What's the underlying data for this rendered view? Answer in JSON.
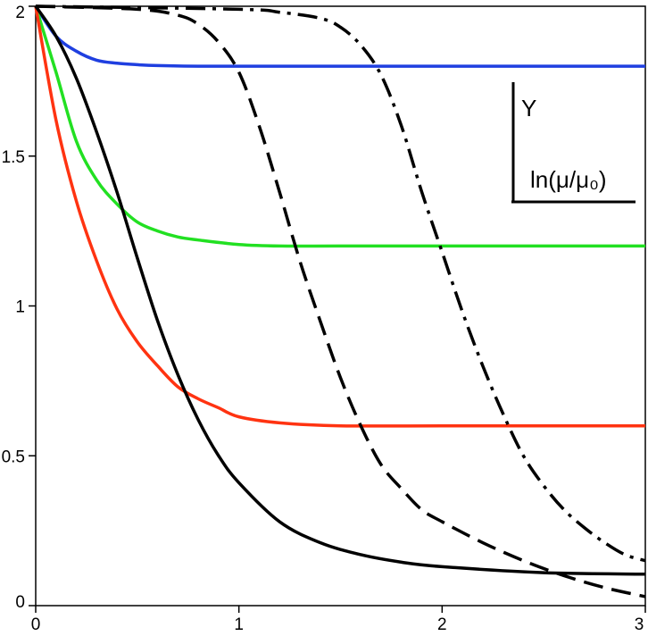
{
  "chart_data": {
    "type": "line",
    "title": "",
    "xlabel": "",
    "ylabel": "",
    "xlim": [
      0,
      3
    ],
    "ylim": [
      0,
      2
    ],
    "xticks": [
      "0",
      "1",
      "2",
      "3"
    ],
    "yticks": [
      "0",
      "0.5",
      "1",
      "1.5",
      "2"
    ],
    "grid": false,
    "legend": {
      "placement": "top-right",
      "vertical_label": "Y",
      "horizontal_label": "ln(μ/μ₀)"
    },
    "series": [
      {
        "color": "#1f3fe0",
        "style": "solid",
        "x": [
          0,
          0.1,
          0.2,
          0.3,
          0.4,
          0.5,
          0.6,
          0.8,
          1.0,
          1.5,
          2.0,
          3.0
        ],
        "y": [
          2.0,
          1.9,
          1.85,
          1.82,
          1.81,
          1.805,
          1.802,
          1.8,
          1.8,
          1.8,
          1.8,
          1.8
        ]
      },
      {
        "color": "#22e022",
        "style": "solid",
        "x": [
          0,
          0.1,
          0.2,
          0.3,
          0.4,
          0.5,
          0.6,
          0.7,
          0.8,
          1.0,
          1.2,
          1.5,
          2.0,
          3.0
        ],
        "y": [
          2.0,
          1.78,
          1.55,
          1.42,
          1.34,
          1.28,
          1.25,
          1.23,
          1.22,
          1.205,
          1.2,
          1.2,
          1.2,
          1.2
        ]
      },
      {
        "color": "#ff3311",
        "style": "solid",
        "x": [
          0,
          0.1,
          0.2,
          0.3,
          0.4,
          0.5,
          0.6,
          0.7,
          0.8,
          0.9,
          1.0,
          1.2,
          1.5,
          2.0,
          3.0
        ],
        "y": [
          2.0,
          1.62,
          1.35,
          1.15,
          0.99,
          0.88,
          0.8,
          0.73,
          0.69,
          0.66,
          0.63,
          0.61,
          0.6,
          0.6,
          0.6
        ]
      },
      {
        "color": "#000000",
        "style": "solid",
        "x": [
          0,
          0.1,
          0.2,
          0.3,
          0.4,
          0.5,
          0.6,
          0.7,
          0.8,
          0.9,
          1.0,
          1.2,
          1.4,
          1.6,
          1.8,
          2.0,
          2.5,
          3.0
        ],
        "y": [
          2.0,
          1.9,
          1.76,
          1.58,
          1.38,
          1.16,
          0.95,
          0.77,
          0.62,
          0.5,
          0.41,
          0.28,
          0.21,
          0.17,
          0.145,
          0.13,
          0.11,
          0.105
        ]
      },
      {
        "color": "#000000",
        "style": "dashed",
        "x": [
          0,
          0.5,
          0.7,
          0.8,
          0.9,
          1.0,
          1.1,
          1.2,
          1.3,
          1.4,
          1.5,
          1.6,
          1.7,
          1.8,
          1.9,
          2.0,
          2.2,
          2.4,
          2.6,
          2.8,
          3.0
        ],
        "y": [
          2.0,
          1.99,
          1.97,
          1.94,
          1.88,
          1.78,
          1.6,
          1.38,
          1.15,
          0.95,
          0.76,
          0.6,
          0.47,
          0.39,
          0.32,
          0.28,
          0.21,
          0.15,
          0.1,
          0.06,
          0.03
        ]
      },
      {
        "color": "#000000",
        "style": "dashdot",
        "x": [
          0,
          1.0,
          1.2,
          1.4,
          1.5,
          1.6,
          1.7,
          1.8,
          1.9,
          2.0,
          2.1,
          2.2,
          2.3,
          2.4,
          2.5,
          2.6,
          2.7,
          2.8,
          2.9,
          3.0
        ],
        "y": [
          2.0,
          1.99,
          1.98,
          1.96,
          1.93,
          1.87,
          1.77,
          1.6,
          1.38,
          1.18,
          0.98,
          0.8,
          0.64,
          0.5,
          0.4,
          0.32,
          0.26,
          0.21,
          0.17,
          0.15
        ]
      }
    ]
  }
}
